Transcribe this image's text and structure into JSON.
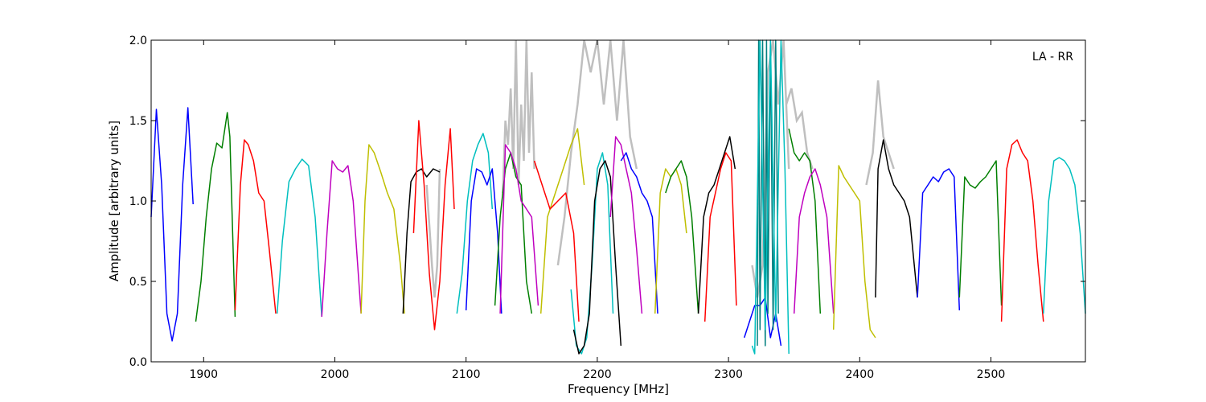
{
  "chart_data": {
    "type": "line",
    "title": "",
    "annotation": "LA - RR",
    "xlabel": "Frequency [MHz]",
    "ylabel": "Amplitude [arbitrary units]",
    "xlim": [
      1860,
      2572
    ],
    "ylim": [
      0.0,
      2.0
    ],
    "xticks": [
      1900,
      2000,
      2100,
      2200,
      2300,
      2400,
      2500
    ],
    "yticks": [
      0.0,
      0.5,
      1.0,
      1.5,
      2.0
    ],
    "xtick_labels": [
      "1900",
      "2000",
      "2100",
      "2200",
      "2300",
      "2400",
      "2500"
    ],
    "ytick_labels": [
      "0.0",
      "0.5",
      "1.0",
      "1.5",
      "2.0"
    ],
    "grid": false,
    "background_color": "#bfbfbf",
    "background_series": [
      {
        "x": [
          2070,
          2072,
          2074,
          2076,
          2078,
          2080
        ],
        "y": [
          1.1,
          0.85,
          0.6,
          0.4,
          0.6,
          1.2
        ]
      },
      {
        "x": [
          2128,
          2130,
          2132,
          2134,
          2136,
          2138,
          2140,
          2142,
          2144,
          2146,
          2148,
          2150,
          2152
        ],
        "y": [
          1.05,
          1.5,
          1.35,
          1.7,
          1.2,
          2.0,
          1.1,
          1.6,
          1.25,
          2.0,
          1.3,
          1.8,
          1.2
        ]
      },
      {
        "x": [
          2170,
          2175,
          2180,
          2185,
          2190,
          2195,
          2200,
          2205,
          2210,
          2215,
          2220,
          2225,
          2230
        ],
        "y": [
          0.6,
          0.9,
          1.3,
          1.6,
          2.0,
          1.8,
          2.0,
          1.6,
          2.0,
          1.5,
          2.0,
          1.4,
          1.2
        ]
      },
      {
        "x": [
          2318,
          2322,
          2326,
          2330,
          2334,
          2338,
          2342,
          2346
        ],
        "y": [
          0.6,
          0.4,
          0.6,
          1.8,
          2.0,
          1.6,
          2.0,
          1.2
        ]
      },
      {
        "x": [
          2344,
          2348,
          2352,
          2356,
          2360,
          2364
        ],
        "y": [
          1.6,
          1.7,
          1.5,
          1.55,
          1.3,
          1.2
        ]
      },
      {
        "x": [
          2405,
          2410,
          2414,
          2418,
          2422,
          2426
        ],
        "y": [
          1.1,
          1.3,
          1.75,
          1.4,
          1.3,
          1.2
        ]
      }
    ],
    "series": [
      {
        "color": "#0000ff",
        "x": [
          1860,
          1864,
          1868,
          1872,
          1876,
          1880,
          1884,
          1888,
          1892
        ],
        "y": [
          0.9,
          1.57,
          1.1,
          0.3,
          0.13,
          0.3,
          1.1,
          1.58,
          0.98
        ]
      },
      {
        "color": "#007f00",
        "x": [
          1894,
          1898,
          1902,
          1906,
          1910,
          1914,
          1918,
          1920,
          1924
        ],
        "y": [
          0.25,
          0.5,
          0.9,
          1.2,
          1.36,
          1.33,
          1.55,
          1.4,
          0.28
        ]
      },
      {
        "color": "#ff0000",
        "x": [
          1924,
          1928,
          1931,
          1934,
          1938,
          1942,
          1946,
          1950,
          1955
        ],
        "y": [
          0.32,
          1.1,
          1.38,
          1.35,
          1.25,
          1.05,
          1.0,
          0.7,
          0.3
        ]
      },
      {
        "color": "#00bfbf",
        "x": [
          1956,
          1960,
          1965,
          1970,
          1975,
          1980,
          1985,
          1990
        ],
        "y": [
          0.3,
          0.75,
          1.12,
          1.2,
          1.26,
          1.22,
          0.9,
          0.28
        ]
      },
      {
        "color": "#bf00bf",
        "x": [
          1990,
          1994,
          1998,
          2002,
          2006,
          2010,
          2014,
          2020
        ],
        "y": [
          0.28,
          0.8,
          1.25,
          1.2,
          1.18,
          1.22,
          1.0,
          0.3
        ]
      },
      {
        "color": "#bfbf00",
        "x": [
          2020,
          2023,
          2026,
          2030,
          2035,
          2040,
          2045,
          2050,
          2053
        ],
        "y": [
          0.3,
          1.0,
          1.35,
          1.3,
          1.18,
          1.05,
          0.95,
          0.6,
          0.3
        ]
      },
      {
        "color": "#000000",
        "x": [
          2052,
          2055,
          2058,
          2062,
          2066,
          2070,
          2075,
          2080
        ],
        "y": [
          0.3,
          0.8,
          1.12,
          1.18,
          1.2,
          1.15,
          1.2,
          1.18
        ]
      },
      {
        "color": "#ff0000",
        "x": [
          2060,
          2064,
          2068,
          2072,
          2076,
          2080,
          2084,
          2088,
          2091
        ],
        "y": [
          0.8,
          1.5,
          1.1,
          0.55,
          0.2,
          0.5,
          1.1,
          1.45,
          0.95
        ]
      },
      {
        "color": "#00bfbf",
        "x": [
          2093,
          2097,
          2101,
          2105,
          2109,
          2113,
          2117,
          2120
        ],
        "y": [
          0.3,
          0.55,
          1.0,
          1.25,
          1.35,
          1.42,
          1.3,
          0.95
        ]
      },
      {
        "color": "#0000ff",
        "x": [
          2100,
          2104,
          2108,
          2112,
          2116,
          2120,
          2124,
          2127
        ],
        "y": [
          0.32,
          1.0,
          1.2,
          1.18,
          1.1,
          1.2,
          0.8,
          0.3
        ]
      },
      {
        "color": "#007f00",
        "x": [
          2122,
          2126,
          2130,
          2134,
          2138,
          2142,
          2146,
          2150
        ],
        "y": [
          0.35,
          0.9,
          1.2,
          1.3,
          1.15,
          1.1,
          0.5,
          0.3
        ]
      },
      {
        "color": "#bf00bf",
        "x": [
          2126,
          2130,
          2134,
          2138,
          2142,
          2146,
          2150,
          2155
        ],
        "y": [
          0.3,
          1.35,
          1.3,
          1.2,
          1.0,
          0.95,
          0.9,
          0.35
        ]
      },
      {
        "color": "#bfbf00",
        "x": [
          2157,
          2162,
          2168,
          2174,
          2180,
          2185,
          2190
        ],
        "y": [
          0.3,
          0.9,
          1.05,
          1.2,
          1.35,
          1.45,
          1.1
        ]
      },
      {
        "color": "#ff0000",
        "x": [
          2152,
          2158,
          2164,
          2170,
          2176,
          2182,
          2186
        ],
        "y": [
          1.25,
          1.1,
          0.95,
          1.0,
          1.05,
          0.8,
          0.25
        ]
      },
      {
        "color": "#00bfbf",
        "x": [
          2180,
          2184,
          2188,
          2192,
          2196,
          2200,
          2204,
          2208,
          2212
        ],
        "y": [
          0.45,
          0.1,
          0.05,
          0.15,
          0.6,
          1.2,
          1.3,
          1.1,
          0.3
        ]
      },
      {
        "color": "#000000",
        "x": [
          2182,
          2186,
          2190,
          2194,
          2198,
          2202,
          2206,
          2210,
          2214,
          2218
        ],
        "y": [
          0.2,
          0.05,
          0.1,
          0.3,
          1.0,
          1.2,
          1.25,
          1.15,
          0.6,
          0.1
        ]
      },
      {
        "color": "#bf00bf",
        "x": [
          2210,
          2214,
          2218,
          2222,
          2226,
          2230,
          2234
        ],
        "y": [
          0.9,
          1.4,
          1.35,
          1.2,
          1.05,
          0.7,
          0.3
        ]
      },
      {
        "color": "#0000ff",
        "x": [
          2218,
          2222,
          2226,
          2230,
          2234,
          2238,
          2242,
          2246
        ],
        "y": [
          1.25,
          1.3,
          1.2,
          1.15,
          1.05,
          1.0,
          0.9,
          0.3
        ]
      },
      {
        "color": "#bfbf00",
        "x": [
          2244,
          2248,
          2252,
          2256,
          2260,
          2264,
          2268
        ],
        "y": [
          0.3,
          1.05,
          1.2,
          1.15,
          1.2,
          1.1,
          0.8
        ]
      },
      {
        "color": "#007f00",
        "x": [
          2252,
          2256,
          2260,
          2264,
          2268,
          2272,
          2277
        ],
        "y": [
          1.05,
          1.15,
          1.2,
          1.25,
          1.15,
          0.9,
          0.3
        ]
      },
      {
        "color": "#000000",
        "x": [
          2277,
          2281,
          2285,
          2289,
          2293,
          2297,
          2301,
          2305
        ],
        "y": [
          0.3,
          0.9,
          1.05,
          1.1,
          1.2,
          1.3,
          1.4,
          1.2
        ]
      },
      {
        "color": "#ff0000",
        "x": [
          2282,
          2286,
          2290,
          2294,
          2298,
          2302,
          2306
        ],
        "y": [
          0.25,
          0.9,
          1.05,
          1.2,
          1.3,
          1.25,
          0.35
        ]
      },
      {
        "color": "#0000ff",
        "x": [
          2312,
          2316,
          2320,
          2324,
          2328,
          2332,
          2336,
          2340
        ],
        "y": [
          0.15,
          0.25,
          0.35,
          0.35,
          0.4,
          0.15,
          0.3,
          0.1
        ]
      },
      {
        "color": "#007f7f",
        "x": [
          2322,
          2323,
          2324,
          2326,
          2328,
          2329,
          2330,
          2332,
          2334,
          2336,
          2338
        ],
        "y": [
          0.1,
          2.0,
          0.2,
          2.0,
          0.1,
          2.0,
          0.3,
          2.0,
          0.2,
          2.0,
          0.3
        ]
      },
      {
        "color": "#00bfbf",
        "x": [
          2318,
          2320,
          2324,
          2328,
          2332,
          2336,
          2340,
          2343,
          2346
        ],
        "y": [
          0.1,
          0.05,
          2.0,
          0.2,
          2.0,
          0.25,
          2.0,
          1.2,
          0.05
        ]
      },
      {
        "color": "#007f00",
        "x": [
          2346,
          2350,
          2354,
          2358,
          2362,
          2366,
          2370
        ],
        "y": [
          1.45,
          1.3,
          1.25,
          1.3,
          1.25,
          1.0,
          0.3
        ]
      },
      {
        "color": "#bf00bf",
        "x": [
          2350,
          2354,
          2358,
          2362,
          2366,
          2370,
          2375,
          2380
        ],
        "y": [
          0.3,
          0.9,
          1.05,
          1.15,
          1.2,
          1.1,
          0.9,
          0.3
        ]
      },
      {
        "color": "#bfbf00",
        "x": [
          2380,
          2384,
          2388,
          2392,
          2396,
          2400,
          2404,
          2408,
          2412
        ],
        "y": [
          0.2,
          1.22,
          1.15,
          1.1,
          1.05,
          1.0,
          0.5,
          0.2,
          0.15
        ]
      },
      {
        "color": "#000000",
        "x": [
          2412,
          2414,
          2418,
          2422,
          2426,
          2430,
          2434,
          2438,
          2444
        ],
        "y": [
          0.4,
          1.2,
          1.38,
          1.2,
          1.1,
          1.05,
          1.0,
          0.9,
          0.4
        ]
      },
      {
        "color": "#0000ff",
        "x": [
          2444,
          2448,
          2452,
          2456,
          2460,
          2464,
          2468,
          2472,
          2476
        ],
        "y": [
          0.4,
          1.05,
          1.1,
          1.15,
          1.12,
          1.18,
          1.2,
          1.15,
          0.32
        ]
      },
      {
        "color": "#007f00",
        "x": [
          2476,
          2480,
          2484,
          2488,
          2492,
          2496,
          2500,
          2504,
          2508
        ],
        "y": [
          0.4,
          1.15,
          1.1,
          1.08,
          1.12,
          1.15,
          1.2,
          1.25,
          0.35
        ]
      },
      {
        "color": "#ff0000",
        "x": [
          2508,
          2512,
          2516,
          2520,
          2524,
          2528,
          2532,
          2536,
          2540
        ],
        "y": [
          0.25,
          1.2,
          1.35,
          1.38,
          1.3,
          1.25,
          1.0,
          0.6,
          0.25
        ]
      },
      {
        "color": "#00bfbf",
        "x": [
          2540,
          2544,
          2548,
          2552,
          2556,
          2560,
          2564,
          2568,
          2572
        ],
        "y": [
          0.3,
          1.0,
          1.25,
          1.27,
          1.25,
          1.2,
          1.1,
          0.8,
          0.3
        ]
      }
    ]
  }
}
